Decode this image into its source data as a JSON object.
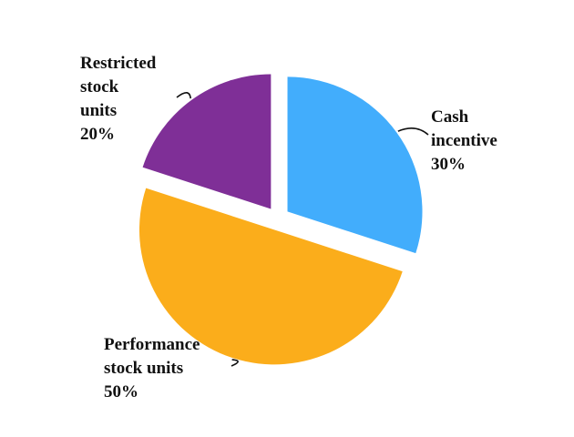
{
  "chart_data": {
    "type": "pie",
    "exploded": true,
    "legend": "none",
    "slices": [
      {
        "name": "Cash incentive",
        "value": 30,
        "color": "#42adfc",
        "label_lines": [
          "Cash",
          "incentive",
          "30%"
        ]
      },
      {
        "name": "Performance stock units",
        "value": 50,
        "color": "#fbad1b",
        "label_lines": [
          "Performance",
          "stock units",
          "50%"
        ]
      },
      {
        "name": "Restricted stock units",
        "value": 20,
        "color": "#7f2f97",
        "label_lines": [
          "Restricted",
          "stock",
          "units",
          "20%"
        ]
      }
    ]
  }
}
